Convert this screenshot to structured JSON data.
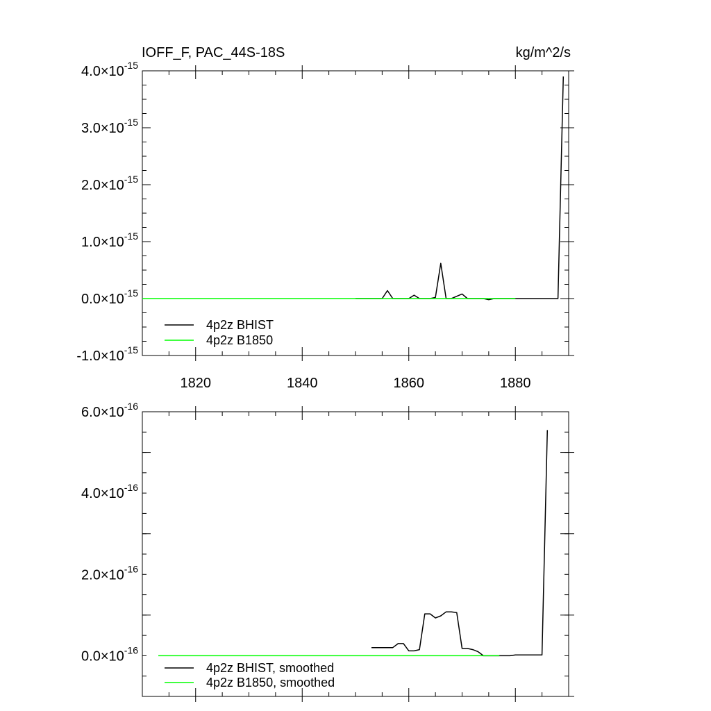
{
  "chart_data": [
    {
      "type": "line",
      "title_left": "IOFF_F, PAC_44S-18S",
      "title_right": "kg/m^2/s",
      "xlim": [
        1810,
        1890
      ],
      "ylim": [
        -1e-15,
        4e-15
      ],
      "x_ticks": [
        1820,
        1840,
        1860,
        1880
      ],
      "y_ticks": [
        {
          "value": -1e-15,
          "mantissa": "-1.0",
          "exp": "-15"
        },
        {
          "value": 0.0,
          "mantissa": "0.0",
          "exp": "-15"
        },
        {
          "value": 1e-15,
          "mantissa": "1.0",
          "exp": "-15"
        },
        {
          "value": 2e-15,
          "mantissa": "2.0",
          "exp": "-15"
        },
        {
          "value": 3e-15,
          "mantissa": "3.0",
          "exp": "-15"
        },
        {
          "value": 4e-15,
          "mantissa": "4.0",
          "exp": "-15"
        }
      ],
      "legend_position": "bottom-left",
      "series": [
        {
          "name": "4p2z BHIST",
          "color": "#000000",
          "x": [
            1850,
            1851,
            1852,
            1853,
            1854,
            1855,
            1856,
            1857,
            1858,
            1859,
            1860,
            1861,
            1862,
            1863,
            1864,
            1865,
            1866,
            1867,
            1868,
            1869,
            1870,
            1871,
            1872,
            1873,
            1874,
            1875,
            1876,
            1877,
            1878,
            1879,
            1880,
            1881,
            1882,
            1883,
            1884,
            1885,
            1886,
            1887,
            1888,
            1889
          ],
          "y": [
            0,
            0,
            0,
            0,
            0,
            0,
            1.4e-16,
            0,
            0,
            0,
            0,
            6e-17,
            0,
            0,
            0,
            2e-17,
            6.2e-16,
            0,
            0,
            4e-17,
            8e-17,
            0,
            0,
            0,
            0,
            -2e-17,
            0,
            0,
            0,
            0,
            0,
            0,
            0,
            0,
            0,
            0,
            0,
            0,
            0,
            3.9e-15
          ]
        },
        {
          "name": "4p2z B1850",
          "color": "#00ff00",
          "x": [
            1810,
            1880
          ],
          "y": [
            0,
            0
          ]
        }
      ]
    },
    {
      "type": "line",
      "xlim": [
        1810,
        1890
      ],
      "ylim": [
        -1e-16,
        6e-16
      ],
      "x_ticks": [
        1820,
        1840,
        1860,
        1880
      ],
      "y_ticks": [
        {
          "value": 0.0,
          "mantissa": "0.0",
          "exp": "-16"
        },
        {
          "value": 2e-16,
          "mantissa": "2.0",
          "exp": "-16"
        },
        {
          "value": 4e-16,
          "mantissa": "4.0",
          "exp": "-16"
        },
        {
          "value": 6e-16,
          "mantissa": "6.0",
          "exp": "-16"
        }
      ],
      "legend_position": "bottom-left",
      "series": [
        {
          "name": "4p2z BHIST, smoothed",
          "color": "#000000",
          "x": [
            1853,
            1854,
            1855,
            1856,
            1857,
            1858,
            1859,
            1860,
            1861,
            1862,
            1863,
            1864,
            1865,
            1866,
            1867,
            1868,
            1869,
            1870,
            1871,
            1872,
            1873,
            1874,
            1875,
            1876,
            1877,
            1878,
            1879,
            1880,
            1881,
            1882,
            1883,
            1884,
            1885,
            1886
          ],
          "y": [
            2e-17,
            2e-17,
            2e-17,
            2e-17,
            2e-17,
            3e-17,
            3e-17,
            1.2e-17,
            1.2e-17,
            1.5e-17,
            1.03e-16,
            1.03e-16,
            9.3e-17,
            9.8e-17,
            1.08e-16,
            1.08e-16,
            1.06e-16,
            1.8e-17,
            1.8e-17,
            1.5e-17,
            1e-17,
            0,
            0,
            0,
            0,
            0,
            0,
            2e-18,
            2e-18,
            2e-18,
            2e-18,
            2e-18,
            2e-18,
            5.55e-16
          ]
        },
        {
          "name": "4p2z B1850, smoothed",
          "color": "#00ff00",
          "x": [
            1813,
            1877
          ],
          "y": [
            0,
            0
          ]
        }
      ]
    }
  ]
}
